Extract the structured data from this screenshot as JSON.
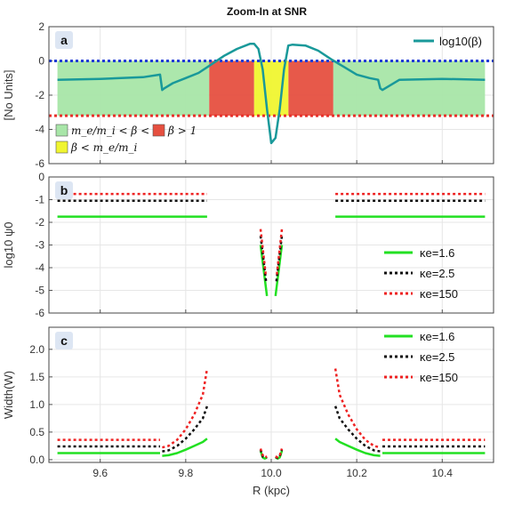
{
  "chart_data": [
    {
      "type": "line",
      "panel": "a",
      "title": "Zoom-In at SNR",
      "ylabel": "[No Units]",
      "xlim": [
        9.48,
        10.52
      ],
      "ylim": [
        -6,
        2
      ],
      "yticks": [
        -6,
        -4,
        -2,
        0,
        2
      ],
      "grid": true,
      "legend_position": "top-right",
      "series": [
        {
          "name": "log10(β)",
          "color": "#19999a",
          "x": [
            9.5,
            9.6,
            9.7,
            9.74,
            9.745,
            9.75,
            9.77,
            9.8,
            9.83,
            9.86,
            9.89,
            9.92,
            9.95,
            9.96,
            9.97,
            9.98,
            9.99,
            10.0,
            10.01,
            10.02,
            10.03,
            10.04,
            10.05,
            10.08,
            10.11,
            10.14,
            10.17,
            10.2,
            10.23,
            10.25,
            10.255,
            10.26,
            10.3,
            10.4,
            10.5
          ],
          "y": [
            -1.1,
            -1.05,
            -0.95,
            -0.8,
            -1.7,
            -1.6,
            -1.3,
            -1.0,
            -0.7,
            -0.2,
            0.3,
            0.7,
            1.0,
            1.0,
            0.7,
            -0.5,
            -2.8,
            -4.8,
            -4.5,
            -2.8,
            -0.5,
            0.9,
            0.95,
            0.9,
            0.6,
            0.1,
            -0.35,
            -0.8,
            -1.0,
            -1.1,
            -1.6,
            -1.7,
            -1.1,
            -1.05,
            -1.1
          ]
        }
      ],
      "reference_lines": [
        {
          "name": "upper",
          "y": 0,
          "color": "#1f3bd6",
          "style": "dotted"
        },
        {
          "name": "lower",
          "y": -3.2,
          "color": "#e8302a",
          "style": "dotted"
        }
      ],
      "regions": [
        {
          "label": "m_e/m_i < β < 1",
          "x_ranges": [
            [
              9.5,
              9.855
            ],
            [
              10.145,
              10.5
            ]
          ],
          "color": "#a8e6a8"
        },
        {
          "label": "β > 1",
          "x_ranges": [
            [
              9.855,
              9.96
            ],
            [
              10.04,
              10.145
            ]
          ],
          "color": "#e65040"
        },
        {
          "label": "β < m_e/m_i",
          "x_ranges": [
            [
              9.96,
              10.04
            ]
          ],
          "color": "#f0f530"
        }
      ],
      "legend": [
        "log10(β)"
      ],
      "region_legend": [
        "m_e/m_i < β < 1",
        "β > 1",
        "β < m_e/m_i"
      ]
    },
    {
      "type": "line",
      "panel": "b",
      "ylabel": "log10 ψ0",
      "xlim": [
        9.48,
        10.52
      ],
      "ylim": [
        -6,
        0
      ],
      "yticks": [
        -6,
        -5,
        -4,
        -3,
        -2,
        -1,
        0
      ],
      "grid": true,
      "legend_position": "bottom-right",
      "series": [
        {
          "name": "κe=1.6",
          "color": "#22e022",
          "style": "solid",
          "segments": [
            {
              "x": [
                9.5,
                9.85
              ],
              "y": [
                -1.75,
                -1.75
              ]
            },
            {
              "x": [
                9.975,
                9.99
              ],
              "y": [
                -3.0,
                -5.25
              ]
            },
            {
              "x": [
                10.01,
                10.025
              ],
              "y": [
                -5.25,
                -3.0
              ]
            },
            {
              "x": [
                10.15,
                10.5
              ],
              "y": [
                -1.75,
                -1.75
              ]
            }
          ]
        },
        {
          "name": "κe=2.5",
          "color": "#111111",
          "style": "dotted",
          "segments": [
            {
              "x": [
                9.5,
                9.85
              ],
              "y": [
                -1.05,
                -1.05
              ]
            },
            {
              "x": [
                9.975,
                9.988
              ],
              "y": [
                -2.6,
                -4.6
              ]
            },
            {
              "x": [
                10.012,
                10.025
              ],
              "y": [
                -4.6,
                -2.6
              ]
            },
            {
              "x": [
                10.15,
                10.5
              ],
              "y": [
                -1.05,
                -1.05
              ]
            }
          ]
        },
        {
          "name": "κe=150",
          "color": "#ee2222",
          "style": "dotted",
          "segments": [
            {
              "x": [
                9.5,
                9.85
              ],
              "y": [
                -0.75,
                -0.75
              ]
            },
            {
              "x": [
                9.975,
                9.987
              ],
              "y": [
                -2.3,
                -4.3
              ]
            },
            {
              "x": [
                10.013,
                10.025
              ],
              "y": [
                -4.3,
                -2.3
              ]
            },
            {
              "x": [
                10.15,
                10.5
              ],
              "y": [
                -0.75,
                -0.75
              ]
            }
          ]
        }
      ],
      "legend": [
        "κe=1.6",
        "κe=2.5",
        "κe=150"
      ]
    },
    {
      "type": "line",
      "panel": "c",
      "ylabel": "Width(W)",
      "xlabel": "R (kpc)",
      "xlim": [
        9.48,
        10.52
      ],
      "ylim": [
        -0.05,
        2.4
      ],
      "yticks": [
        0.0,
        0.5,
        1.0,
        1.5,
        2.0
      ],
      "xticks": [
        9.6,
        9.8,
        10.0,
        10.2,
        10.4
      ],
      "grid": true,
      "legend_position": "top-right",
      "series": [
        {
          "name": "κe=1.6",
          "color": "#22e022",
          "style": "solid",
          "segments": [
            {
              "x": [
                9.5,
                9.74
              ],
              "y": [
                0.12,
                0.12
              ]
            },
            {
              "x": [
                9.745,
                9.76,
                9.78,
                9.8,
                9.82,
                9.84,
                9.85
              ],
              "y": [
                0.07,
                0.08,
                0.12,
                0.18,
                0.25,
                0.32,
                0.38
              ]
            },
            {
              "x": [
                9.975,
                9.98,
                9.985,
                9.99
              ],
              "y": [
                0.16,
                0.04,
                0.02,
                0.04
              ]
            },
            {
              "x": [
                10.01,
                10.015,
                10.02,
                10.025
              ],
              "y": [
                0.04,
                0.02,
                0.04,
                0.16
              ]
            },
            {
              "x": [
                10.15,
                10.16,
                10.18,
                10.2,
                10.22,
                10.24,
                10.255
              ],
              "y": [
                0.38,
                0.32,
                0.25,
                0.18,
                0.12,
                0.08,
                0.07
              ]
            },
            {
              "x": [
                10.26,
                10.5
              ],
              "y": [
                0.12,
                0.12
              ]
            }
          ]
        },
        {
          "name": "κe=2.5",
          "color": "#111111",
          "style": "dotted",
          "segments": [
            {
              "x": [
                9.5,
                9.74
              ],
              "y": [
                0.24,
                0.24
              ]
            },
            {
              "x": [
                9.745,
                9.76,
                9.78,
                9.8,
                9.82,
                9.84,
                9.85
              ],
              "y": [
                0.15,
                0.17,
                0.25,
                0.38,
                0.55,
                0.75,
                0.97
              ]
            },
            {
              "x": [
                9.975,
                9.98,
                9.985,
                9.99
              ],
              "y": [
                0.18,
                0.06,
                0.03,
                0.05
              ]
            },
            {
              "x": [
                10.01,
                10.015,
                10.02,
                10.025
              ],
              "y": [
                0.05,
                0.03,
                0.06,
                0.18
              ]
            },
            {
              "x": [
                10.15,
                10.16,
                10.18,
                10.2,
                10.22,
                10.24,
                10.255
              ],
              "y": [
                0.97,
                0.75,
                0.55,
                0.38,
                0.25,
                0.17,
                0.15
              ]
            },
            {
              "x": [
                10.26,
                10.5
              ],
              "y": [
                0.24,
                0.24
              ]
            }
          ]
        },
        {
          "name": "κe=150",
          "color": "#ee2222",
          "style": "dotted",
          "segments": [
            {
              "x": [
                9.5,
                9.74
              ],
              "y": [
                0.36,
                0.36
              ]
            },
            {
              "x": [
                9.745,
                9.76,
                9.78,
                9.8,
                9.82,
                9.84,
                9.85
              ],
              "y": [
                0.22,
                0.25,
                0.36,
                0.55,
                0.82,
                1.18,
                1.65
              ]
            },
            {
              "x": [
                9.975,
                9.98,
                9.985,
                9.99
              ],
              "y": [
                0.2,
                0.08,
                0.04,
                0.06
              ]
            },
            {
              "x": [
                10.01,
                10.015,
                10.02,
                10.025
              ],
              "y": [
                0.06,
                0.04,
                0.08,
                0.2
              ]
            },
            {
              "x": [
                10.15,
                10.16,
                10.18,
                10.2,
                10.22,
                10.24,
                10.255
              ],
              "y": [
                1.65,
                1.18,
                0.82,
                0.55,
                0.36,
                0.25,
                0.22
              ]
            },
            {
              "x": [
                10.26,
                10.5
              ],
              "y": [
                0.36,
                0.36
              ]
            }
          ]
        }
      ],
      "legend": [
        "κe=1.6",
        "κe=2.5",
        "κe=150"
      ]
    }
  ],
  "labels": {
    "title": "Zoom-In at SNR",
    "xlabel": "R (kpc)",
    "panel_a_letter": "a",
    "panel_b_letter": "b",
    "panel_c_letter": "c",
    "a_ylabel": "[No Units]",
    "b_ylabel": "log10 ψ0",
    "c_ylabel": "Width(W)"
  }
}
